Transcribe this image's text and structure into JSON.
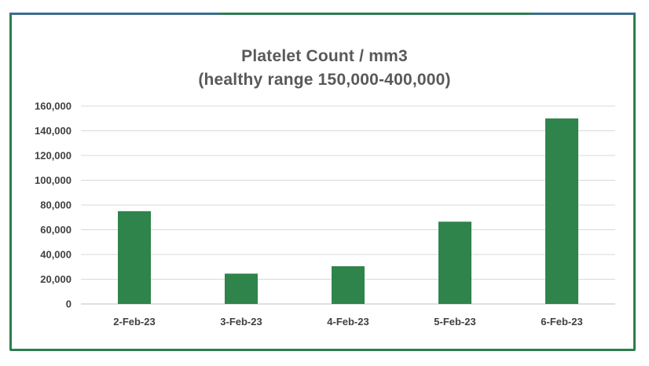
{
  "chart_data": {
    "type": "bar",
    "title": "Platelet Count / mm3",
    "subtitle": "(healthy range 150,000-400,000)",
    "categories": [
      "2-Feb-23",
      "3-Feb-23",
      "4-Feb-23",
      "5-Feb-23",
      "6-Feb-23"
    ],
    "values": [
      75000,
      24500,
      30500,
      66500,
      150000
    ],
    "ylim": [
      0,
      160000
    ],
    "yticks": [
      0,
      20000,
      40000,
      60000,
      80000,
      100000,
      120000,
      140000,
      160000
    ],
    "ytick_labels": [
      "0",
      "20,000",
      "40,000",
      "60,000",
      "80,000",
      "100,000",
      "120,000",
      "140,000",
      "160,000"
    ],
    "grid": true,
    "bar_color": "#2e844a",
    "grid_color": "#d9d9d9"
  }
}
